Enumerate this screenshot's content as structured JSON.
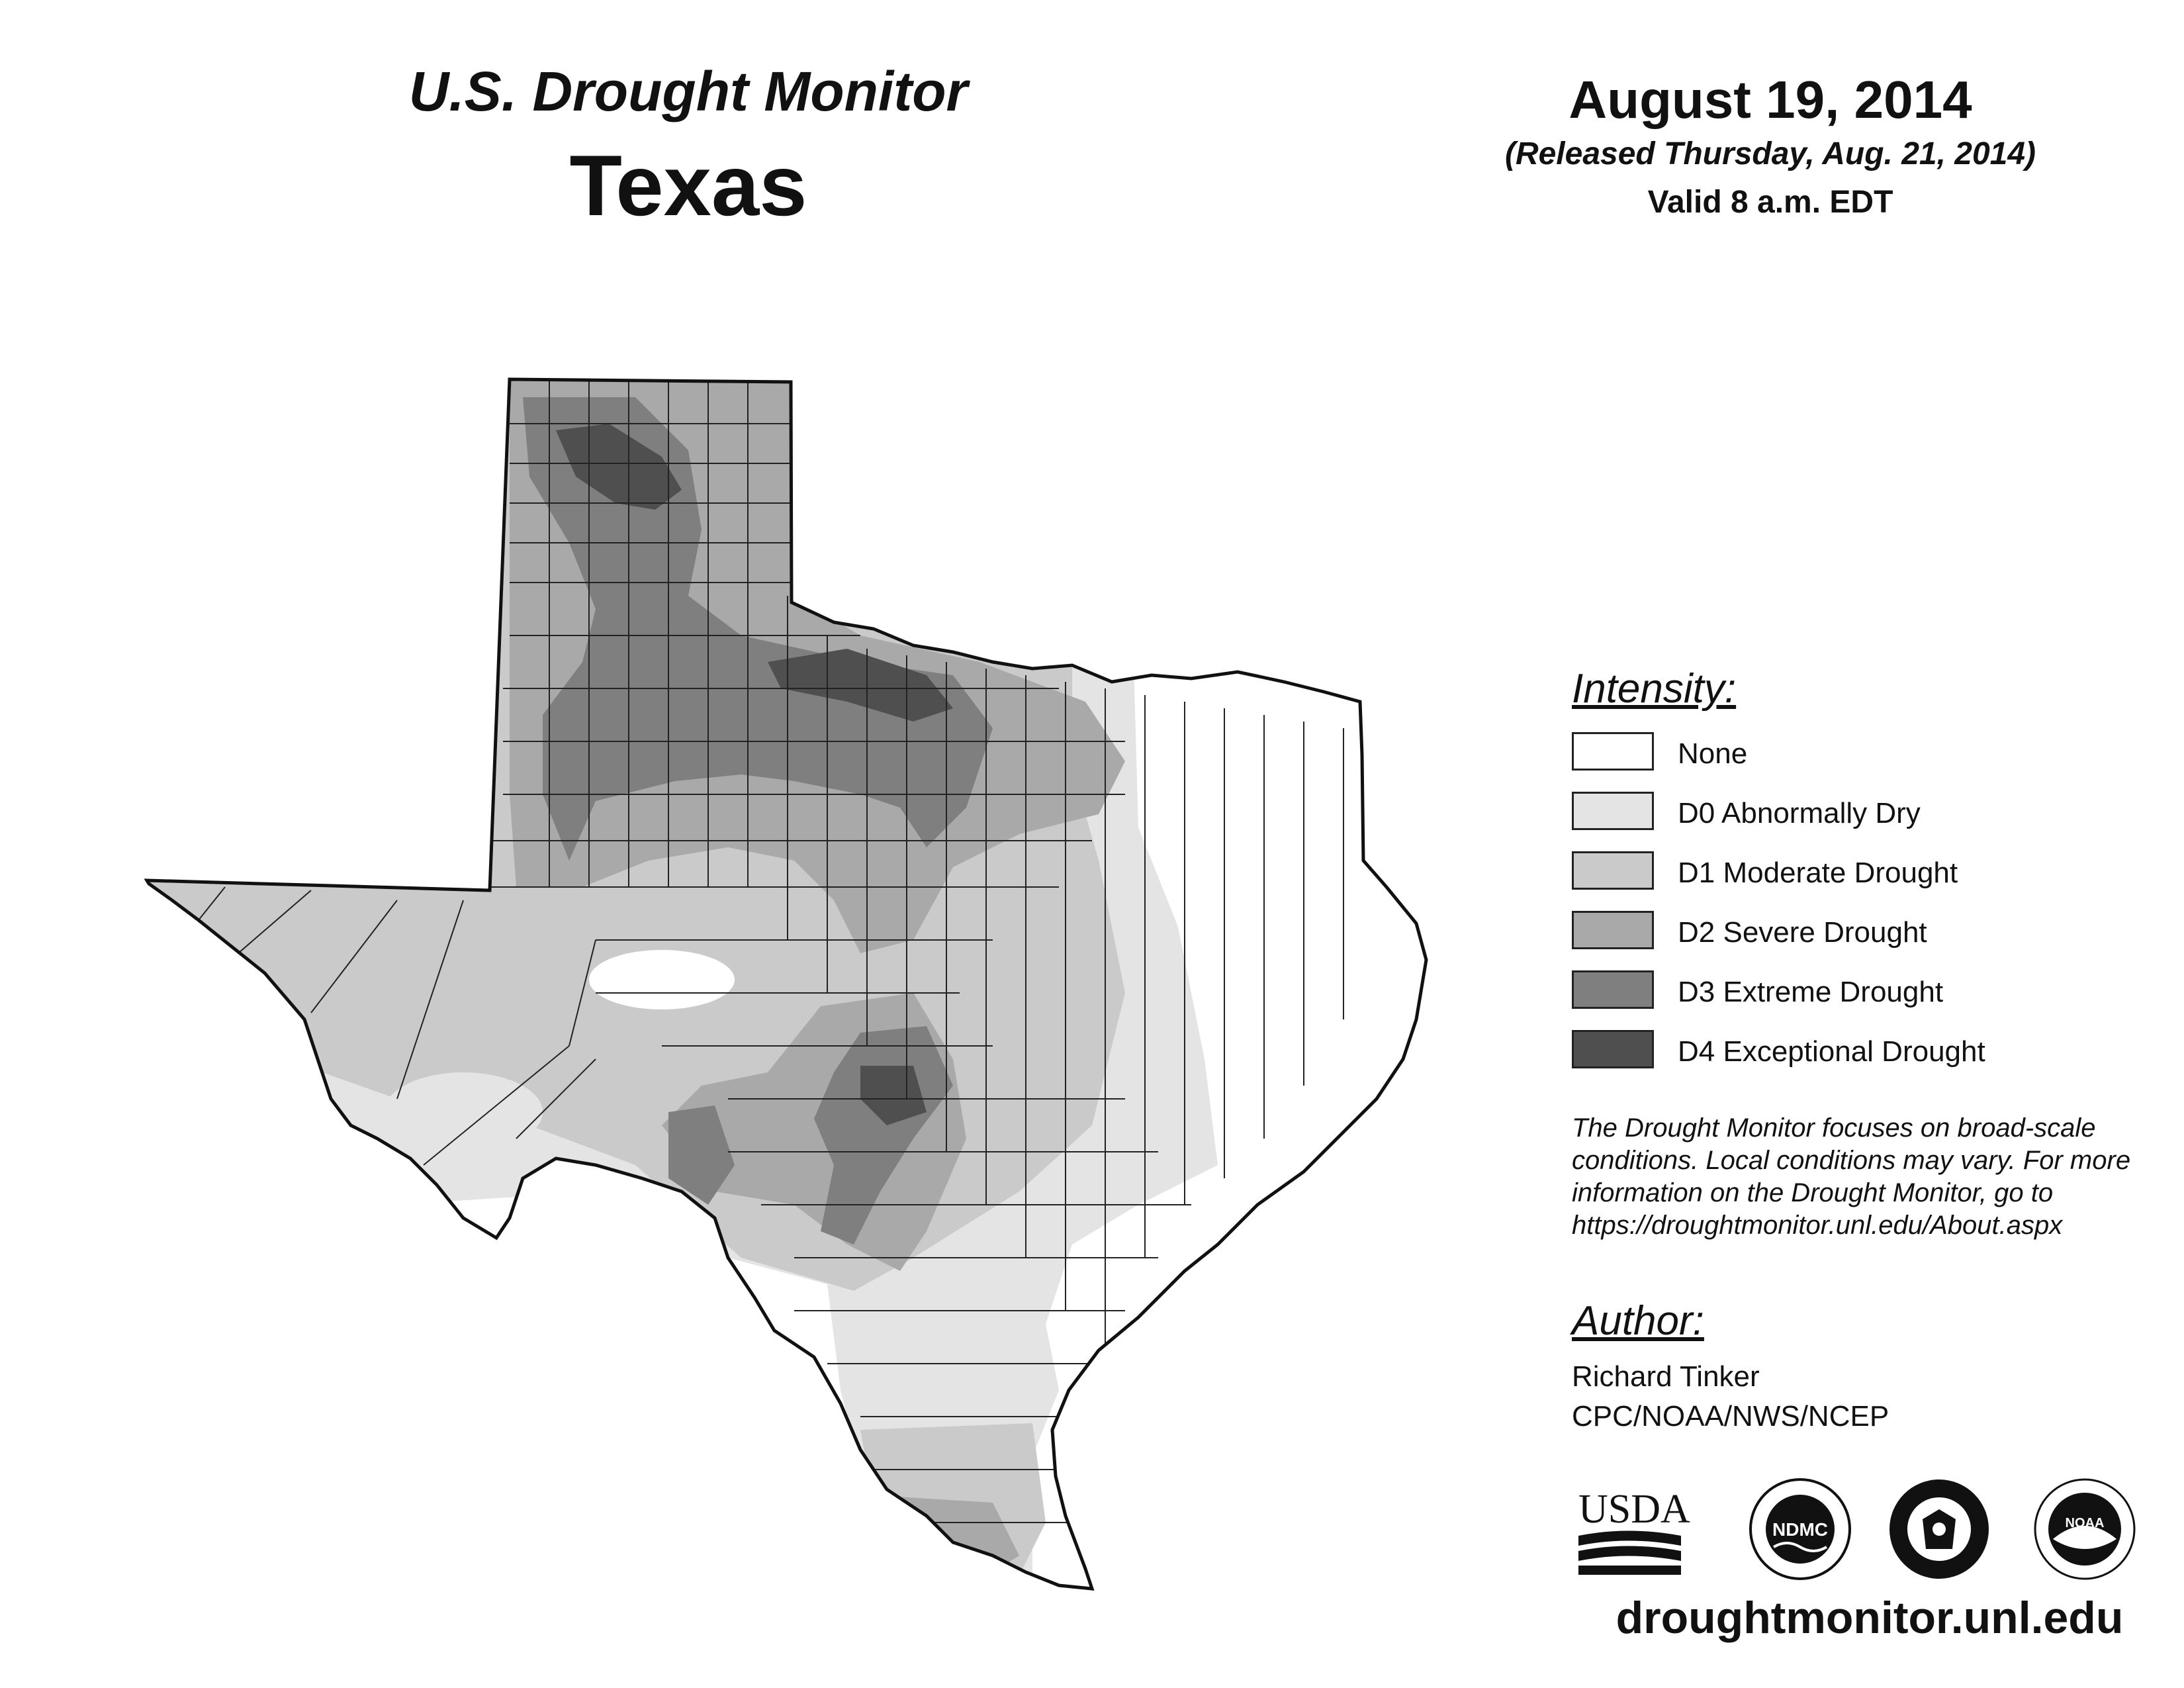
{
  "header": {
    "title": "U.S. Drought Monitor",
    "state": "Texas",
    "date": "August 19, 2014",
    "released": "(Released Thursday, Aug. 21, 2014)",
    "valid": "Valid 8 a.m. EDT"
  },
  "legend": {
    "heading": "Intensity:",
    "items": [
      {
        "label": "None",
        "color": "#ffffff"
      },
      {
        "label": "D0 Abnormally Dry",
        "color": "#e4e4e4"
      },
      {
        "label": "D1 Moderate Drought",
        "color": "#cacaca"
      },
      {
        "label": "D2 Severe Drought",
        "color": "#a9a9a9"
      },
      {
        "label": "D3 Extreme Drought",
        "color": "#7f7f7f"
      },
      {
        "label": "D4 Exceptional Drought",
        "color": "#4f4f4f"
      }
    ]
  },
  "note": {
    "lines": [
      "The Drought Monitor focuses on broad-scale",
      "conditions. Local conditions may vary. For more",
      "information on the Drought Monitor, go to",
      "https://droughtmonitor.unl.edu/About.aspx"
    ]
  },
  "author": {
    "heading": "Author:",
    "name": "Richard Tinker",
    "org": "CPC/NOAA/NWS/NCEP"
  },
  "logos": {
    "usda": "USDA",
    "ndmc": "NDMC",
    "noaa": "NOAA"
  },
  "footer": {
    "website": "droughtmonitor.unl.edu"
  }
}
